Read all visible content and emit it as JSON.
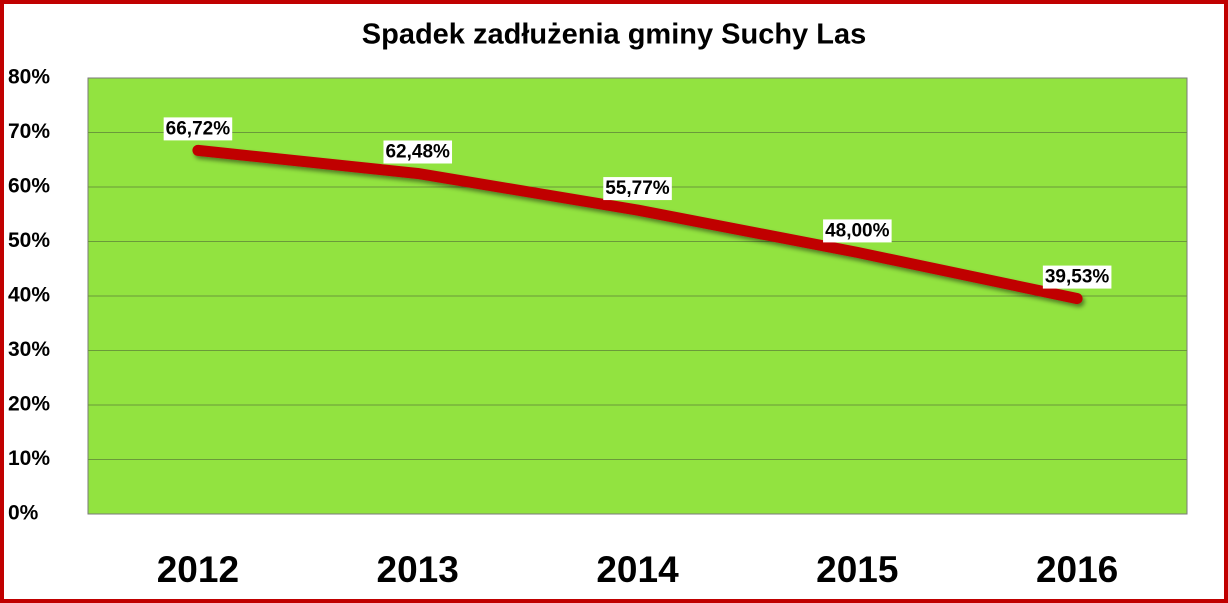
{
  "chart_data": {
    "type": "line",
    "title": "Spadek zadłużenia gminy Suchy Las",
    "categories": [
      "2012",
      "2013",
      "2014",
      "2015",
      "2016"
    ],
    "values": [
      66.72,
      62.48,
      55.77,
      48.0,
      39.53
    ],
    "value_labels": [
      "66,72%",
      "62,48%",
      "55,77%",
      "48,00%",
      "39,53%"
    ],
    "color": "#c00000",
    "ylim": [
      0,
      80
    ],
    "yticks": [
      {
        "value": 0,
        "label": "0%"
      },
      {
        "value": 10,
        "label": "10%"
      },
      {
        "value": 20,
        "label": "20%"
      },
      {
        "value": 30,
        "label": "30%"
      },
      {
        "value": 40,
        "label": "40%"
      },
      {
        "value": 50,
        "label": "50%"
      },
      {
        "value": 60,
        "label": "60%"
      },
      {
        "value": 70,
        "label": "70%"
      },
      {
        "value": 80,
        "label": "80%"
      }
    ],
    "grid": true
  }
}
